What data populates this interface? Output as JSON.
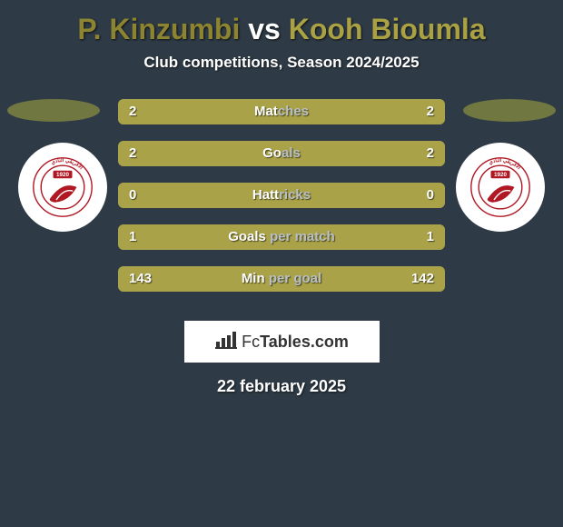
{
  "background_color": "#2e3a45",
  "title": {
    "player1": "P. Kinzumbi",
    "vs": "vs",
    "player2": "Kooh Bioumla",
    "text_color": "#ffffff",
    "player1_color": "#8d8432",
    "player2_color": "#a9a143"
  },
  "subtitle": {
    "text": "Club competitions, Season 2024/2025",
    "color": "#ffffff"
  },
  "ellipse_color": "#717740",
  "badge": {
    "circle_fill": "#ffffff",
    "ring_stroke": "#b01824",
    "ring_text": "الأفريقي  النادي",
    "year": "1920",
    "year_fill": "#b01824",
    "swash_fill": "#b01824"
  },
  "stats": {
    "bar_border_color": "#a9a248",
    "bar_bg_color": "#2e3a45",
    "left_fill_color": "#a9a248",
    "right_fill_color": "#a9a248",
    "value_text_color": "#ffffff",
    "label_left_color": "#ffffff",
    "label_right_color": "#b8c0c6",
    "rows": [
      {
        "left": "2",
        "right": "2",
        "label_a": "Mat",
        "label_b": "ches",
        "left_pct": 50,
        "right_pct": 50
      },
      {
        "left": "2",
        "right": "2",
        "label_a": "Go",
        "label_b": "als",
        "left_pct": 50,
        "right_pct": 50
      },
      {
        "left": "0",
        "right": "0",
        "label_a": "Hatt",
        "label_b": "ricks",
        "left_pct": 50,
        "right_pct": 50
      },
      {
        "left": "1",
        "right": "1",
        "label_a": "Goals ",
        "label_b": "per match",
        "left_pct": 50,
        "right_pct": 50
      },
      {
        "left": "143",
        "right": "142",
        "label_a": "Min ",
        "label_b": "per goal",
        "left_pct": 50,
        "right_pct": 50
      }
    ]
  },
  "logo": {
    "prefix": "Fc",
    "suffix": "Tables.com",
    "text_color": "#333333",
    "bar_color": "#333333"
  },
  "date": {
    "text": "22 february 2025",
    "color": "#ffffff"
  }
}
